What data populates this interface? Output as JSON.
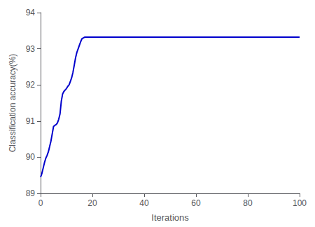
{
  "chart_data": {
    "type": "line",
    "xlabel": "Iterations",
    "ylabel": "Classification accuracy(%)",
    "x": [
      0,
      0.5,
      1,
      1.5,
      2,
      2.5,
      3,
      3.5,
      4,
      4.5,
      5,
      5.5,
      6,
      6.5,
      7,
      7.5,
      8,
      8.5,
      9,
      9.5,
      10,
      10.5,
      11,
      11.5,
      12,
      12.5,
      13,
      13.5,
      14,
      14.5,
      15,
      15.5,
      16,
      16.5,
      17,
      17.5,
      18,
      20,
      25,
      30,
      40,
      50,
      60,
      70,
      80,
      90,
      100
    ],
    "values": [
      89.45,
      89.55,
      89.7,
      89.85,
      89.97,
      90.05,
      90.15,
      90.3,
      90.45,
      90.65,
      90.85,
      90.88,
      90.9,
      90.95,
      91.05,
      91.2,
      91.55,
      91.75,
      91.82,
      91.86,
      91.9,
      91.96,
      92.0,
      92.1,
      92.2,
      92.35,
      92.55,
      92.75,
      92.9,
      93.0,
      93.1,
      93.2,
      93.28,
      93.3,
      93.32,
      93.32,
      93.32,
      93.32,
      93.32,
      93.32,
      93.32,
      93.32,
      93.32,
      93.32,
      93.32,
      93.32,
      93.32
    ],
    "color": "#0000cc",
    "xlim": [
      0,
      100
    ],
    "ylim": [
      89,
      94
    ],
    "xticks": [
      0,
      20,
      40,
      60,
      80,
      100
    ],
    "yticks": [
      89,
      90,
      91,
      92,
      93,
      94
    ],
    "grid": false
  }
}
